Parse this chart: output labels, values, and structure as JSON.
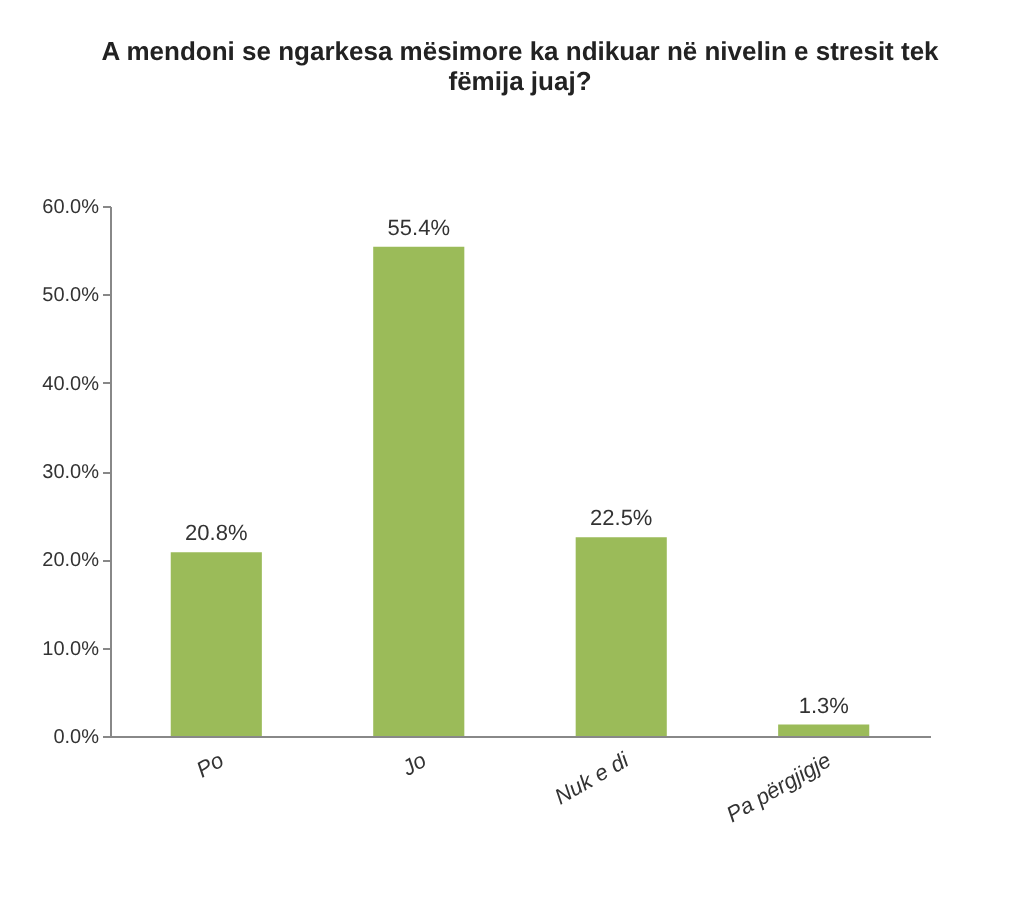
{
  "chart_data": {
    "type": "bar",
    "title": "A mendoni se ngarkesa mësimore ka ndikuar në nivelin e stresit tek fëmija juaj?",
    "categories": [
      "Po",
      "Jo",
      "Nuk e di",
      "Pa përgjigje"
    ],
    "values": [
      20.8,
      55.4,
      22.5,
      1.3
    ],
    "value_labels": [
      "20.8%",
      "55.4%",
      "22.5%",
      "1.3%"
    ],
    "color": "#9bbb59",
    "ylim": [
      0,
      60
    ],
    "yticks": [
      {
        "value": 0,
        "label": "0.0%"
      },
      {
        "value": 10,
        "label": "10.0%"
      },
      {
        "value": 20,
        "label": "20.0%"
      },
      {
        "value": 30,
        "label": "30.0%"
      },
      {
        "value": 40,
        "label": "40.0%"
      },
      {
        "value": 50,
        "label": "50.0%"
      },
      {
        "value": 60,
        "label": "60.0%"
      }
    ],
    "grid": false
  }
}
